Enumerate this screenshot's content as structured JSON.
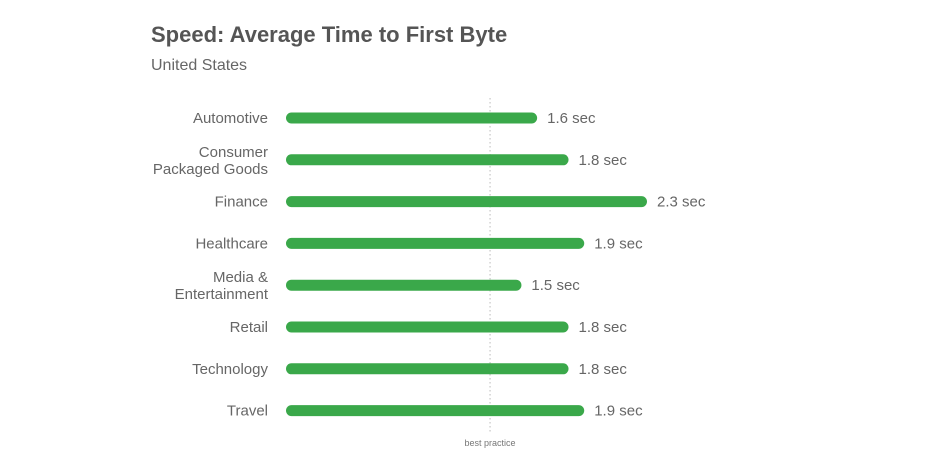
{
  "chart_data": {
    "type": "bar",
    "orientation": "horizontal",
    "title": "Speed: Average Time to First Byte",
    "subtitle": "United States",
    "categories": [
      [
        "Automotive"
      ],
      [
        "Consumer",
        "Packaged Goods"
      ],
      [
        "Finance"
      ],
      [
        "Healthcare"
      ],
      [
        "Media &",
        "Entertainment"
      ],
      [
        "Retail"
      ],
      [
        "Technology"
      ],
      [
        "Travel"
      ]
    ],
    "values": [
      1.6,
      1.8,
      2.3,
      1.9,
      1.5,
      1.8,
      1.8,
      1.9
    ],
    "value_labels": [
      "1.6 sec",
      "1.8 sec",
      "2.3 sec",
      "1.9 sec",
      "1.5 sec",
      "1.8 sec",
      "1.8 sec",
      "1.9 sec"
    ],
    "unit": "sec",
    "xlim": [
      0,
      2.3
    ],
    "grid": false,
    "reference_line": {
      "value": 1.3,
      "label": "best practice",
      "style": "dotted"
    },
    "colors": {
      "bar": "#3aa84a",
      "title": "#555555",
      "text": "#666666",
      "reference": "#bbbbbb"
    }
  }
}
